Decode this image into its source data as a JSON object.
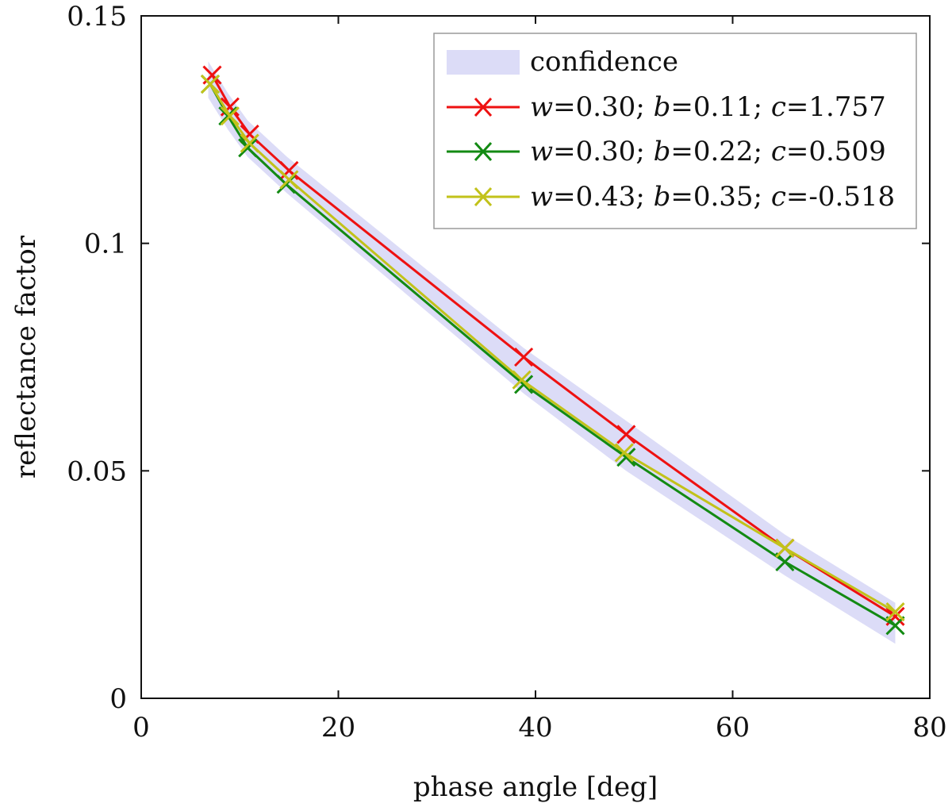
{
  "chart_data": {
    "type": "line",
    "xlabel": "phase angle [deg]",
    "ylabel": "reflectance factor",
    "xlim": [
      0,
      80
    ],
    "ylim": [
      0,
      0.15
    ],
    "x_ticks": [
      0,
      20,
      40,
      60,
      80
    ],
    "x_tick_labels": [
      "0",
      "20",
      "40",
      "60",
      "80"
    ],
    "y_ticks": [
      0,
      0.05,
      0.1,
      0.15
    ],
    "y_tick_labels": [
      "0",
      "0.05",
      "0.1",
      "0.15"
    ],
    "legend_position": "top-right",
    "confidence": {
      "name": "confidence",
      "color": "#dcdcf7",
      "x": [
        6.8,
        8.8,
        10.8,
        14.8,
        38.8,
        49.2,
        65.3,
        76.5
      ],
      "upper": [
        0.14,
        0.133,
        0.127,
        0.119,
        0.077,
        0.061,
        0.036,
        0.021
      ],
      "lower": [
        0.132,
        0.125,
        0.119,
        0.111,
        0.067,
        0.05,
        0.027,
        0.012
      ]
    },
    "series": [
      {
        "name": "w=0.30; b=0.11; c=1.757",
        "legend": {
          "w": "0.30",
          "b": "0.11",
          "c": "1.757"
        },
        "color": "#ee1111",
        "x": [
          7.2,
          9.0,
          11.0,
          15.0,
          38.8,
          49.2,
          65.3,
          76.5
        ],
        "y": [
          0.137,
          0.13,
          0.124,
          0.116,
          0.075,
          0.058,
          0.033,
          0.018
        ]
      },
      {
        "name": "w=0.30; b=0.22; c=0.509",
        "legend": {
          "w": "0.30",
          "b": "0.22",
          "c": "0.509"
        },
        "color": "#138a13",
        "x": [
          7.0,
          8.8,
          10.8,
          14.7,
          38.8,
          49.2,
          65.3,
          76.5
        ],
        "y": [
          0.135,
          0.128,
          0.121,
          0.113,
          0.069,
          0.053,
          0.03,
          0.016
        ]
      },
      {
        "name": "w=0.43; b=0.35; c=-0.518",
        "legend": {
          "w": "0.43",
          "b": "0.35",
          "c": "-0.518"
        },
        "color": "#c2c21a",
        "x": [
          7.0,
          9.0,
          11.0,
          15.0,
          38.6,
          49.0,
          65.3,
          76.5
        ],
        "y": [
          0.135,
          0.128,
          0.122,
          0.114,
          0.07,
          0.054,
          0.033,
          0.019
        ]
      }
    ]
  }
}
